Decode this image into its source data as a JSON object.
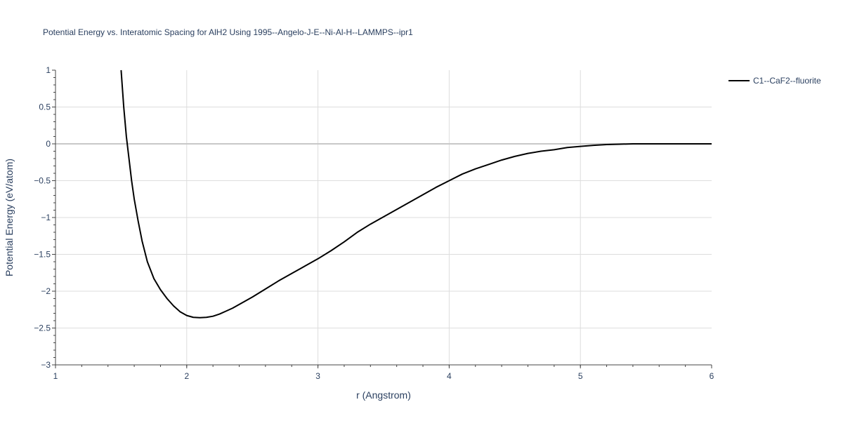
{
  "chart_data": {
    "type": "line",
    "title": "Potential Energy vs. Interatomic Spacing for AlH2 Using 1995--Angelo-J-E--Ni-Al-H--LAMMPS--ipr1",
    "xlabel": "r (Angstrom)",
    "ylabel": "Potential Energy (eV/atom)",
    "xlim": [
      1,
      6
    ],
    "ylim": [
      -3,
      1
    ],
    "x_ticks": [
      "1",
      "2",
      "3",
      "4",
      "5",
      "6"
    ],
    "y_ticks": [
      "1",
      "0.5",
      "0",
      "−0.5",
      "−1",
      "−1.5",
      "−2",
      "−2.5",
      "−3"
    ],
    "grid": true,
    "legend_position": "top-right",
    "series": [
      {
        "name": "C1--CaF2--fluorite",
        "color": "#000000",
        "x": [
          1.5,
          1.52,
          1.54,
          1.56,
          1.58,
          1.6,
          1.63,
          1.66,
          1.7,
          1.75,
          1.8,
          1.85,
          1.9,
          1.95,
          2.0,
          2.05,
          2.1,
          2.15,
          2.2,
          2.25,
          2.3,
          2.35,
          2.4,
          2.5,
          2.6,
          2.7,
          2.8,
          2.9,
          3.0,
          3.1,
          3.2,
          3.3,
          3.4,
          3.5,
          3.6,
          3.7,
          3.8,
          3.9,
          4.0,
          4.1,
          4.2,
          4.3,
          4.4,
          4.5,
          4.6,
          4.7,
          4.8,
          4.9,
          5.0,
          5.1,
          5.2,
          5.3,
          5.4,
          5.5,
          5.6,
          5.7,
          5.8,
          5.9,
          6.0
        ],
        "y": [
          1.0,
          0.5,
          0.1,
          -0.2,
          -0.5,
          -0.75,
          -1.05,
          -1.32,
          -1.6,
          -1.83,
          -1.98,
          -2.1,
          -2.2,
          -2.28,
          -2.33,
          -2.355,
          -2.36,
          -2.355,
          -2.34,
          -2.31,
          -2.27,
          -2.23,
          -2.18,
          -2.08,
          -1.97,
          -1.86,
          -1.76,
          -1.66,
          -1.56,
          -1.45,
          -1.33,
          -1.2,
          -1.09,
          -0.99,
          -0.89,
          -0.79,
          -0.69,
          -0.59,
          -0.5,
          -0.41,
          -0.34,
          -0.28,
          -0.22,
          -0.17,
          -0.13,
          -0.1,
          -0.08,
          -0.05,
          -0.035,
          -0.02,
          -0.01,
          -0.005,
          0.0,
          0.0,
          0.0,
          0.0,
          0.0,
          0.0,
          0.0
        ]
      }
    ]
  }
}
